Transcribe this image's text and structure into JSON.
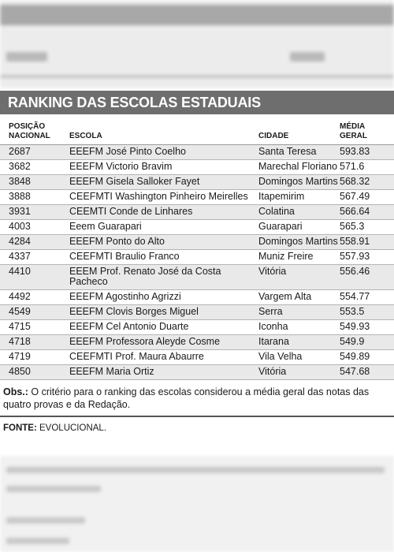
{
  "title": "RANKING DAS ESCOLAS ESTADUAIS",
  "columns": {
    "posicao_line1": "POSIÇÃO",
    "posicao_line2": "NACIONAL",
    "escola": "ESCOLA",
    "cidade": "CIDADE",
    "media_line1": "MÉDIA",
    "media_line2": "GERAL"
  },
  "rows": [
    {
      "pos": "2687",
      "escola": "EEEFM José Pinto Coelho",
      "cidade": "Santa Teresa",
      "media": "593.83"
    },
    {
      "pos": "3682",
      "escola": "EEEFM Victorio Bravim",
      "cidade": "Marechal Floriano",
      "media": "571.6"
    },
    {
      "pos": "3848",
      "escola": "EEEFM Gisela Salloker Fayet",
      "cidade": "Domingos Martins",
      "media": "568.32"
    },
    {
      "pos": "3888",
      "escola": "CEEFMTI Washington Pinheiro Meirelles",
      "cidade": "Itapemirim",
      "media": "567.49"
    },
    {
      "pos": "3931",
      "escola": "CEEMTI Conde de Linhares",
      "cidade": "Colatina",
      "media": "566.64"
    },
    {
      "pos": "4003",
      "escola": "Eeem Guarapari",
      "cidade": "Guarapari",
      "media": "565.3"
    },
    {
      "pos": "4284",
      "escola": "EEEFM Ponto do Alto",
      "cidade": "Domingos Martins",
      "media": "558.91"
    },
    {
      "pos": "4337",
      "escola": "CEEFMTI Braulio Franco",
      "cidade": "Muniz Freire",
      "media": "557.93"
    },
    {
      "pos": "4410",
      "escola": "EEEM Prof. Renato José da Costa Pacheco",
      "cidade": "Vitória",
      "media": "556.46"
    },
    {
      "pos": "4492",
      "escola": "EEEFM Agostinho Agrizzi",
      "cidade": "Vargem Alta",
      "media": "554.77"
    },
    {
      "pos": "4549",
      "escola": "EEEFM Clovis Borges Miguel",
      "cidade": "Serra",
      "media": "553.5"
    },
    {
      "pos": "4715",
      "escola": "EEEFM Cel Antonio Duarte",
      "cidade": "Iconha",
      "media": "549.93"
    },
    {
      "pos": "4718",
      "escola": "EEEFM Professora Aleyde Cosme",
      "cidade": "Itarana",
      "media": "549.9"
    },
    {
      "pos": "4719",
      "escola": "CEEFMTI Prof. Maura Abaurre",
      "cidade": "Vila Velha",
      "media": "549.89"
    },
    {
      "pos": "4850",
      "escola": "EEEFM Maria Ortiz",
      "cidade": "Vitória",
      "media": "547.68"
    }
  ],
  "obs_label": "Obs.:",
  "obs_text": " O critério para o ranking das escolas considerou a média geral das notas das quatro provas e da Redação.",
  "fonte_label": "FONTE:",
  "fonte_text": " EVOLUCIONAL."
}
